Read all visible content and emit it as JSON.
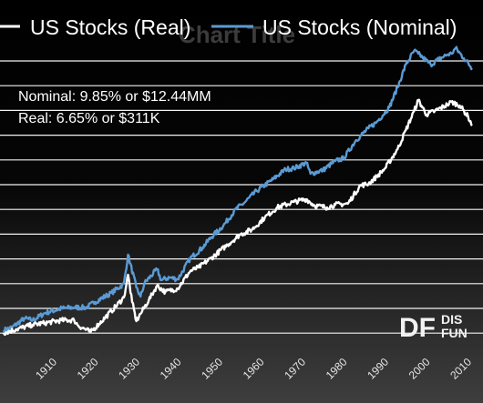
{
  "chart_data": {
    "type": "line",
    "title": "Chart Title",
    "xlabel": "",
    "ylabel": "",
    "y_scale": "log",
    "grid": "horizontal",
    "legend_position": "top",
    "x_range": [
      1900,
      2013
    ],
    "x_ticks": [
      "1910",
      "1920",
      "1930",
      "1940",
      "1950",
      "1960",
      "1970",
      "1980",
      "1990",
      "2000",
      "2010"
    ],
    "annotations": [
      "Nominal: 9.85% or $12.44MM",
      "Real: 6.65% or $311K"
    ],
    "series": [
      {
        "name": "US Stocks (Nominal)",
        "color": "#5b9bd5",
        "points": [
          [
            1900,
            0.5
          ],
          [
            1902,
            0.8
          ],
          [
            1905,
            1.8
          ],
          [
            1907,
            1.6
          ],
          [
            1910,
            2.4
          ],
          [
            1914,
            2.9
          ],
          [
            1917,
            3.0
          ],
          [
            1920,
            3.0
          ],
          [
            1922,
            3.6
          ],
          [
            1926,
            4.6
          ],
          [
            1929,
            5.6
          ],
          [
            1930,
            8.8
          ],
          [
            1932,
            5.2
          ],
          [
            1933,
            4.2
          ],
          [
            1934,
            5.7
          ],
          [
            1937,
            7.2
          ],
          [
            1938,
            6.0
          ],
          [
            1940,
            6.3
          ],
          [
            1942,
            6.1
          ],
          [
            1945,
            8.4
          ],
          [
            1948,
            9.6
          ],
          [
            1950,
            10.7
          ],
          [
            1953,
            12.0
          ],
          [
            1956,
            13.8
          ],
          [
            1958,
            14.5
          ],
          [
            1961,
            15.8
          ],
          [
            1965,
            17.1
          ],
          [
            1968,
            18.2
          ],
          [
            1970,
            18.3
          ],
          [
            1973,
            18.9
          ],
          [
            1974,
            17.7
          ],
          [
            1977,
            18.1
          ],
          [
            1980,
            19.1
          ],
          [
            1982,
            19.4
          ],
          [
            1985,
            21.4
          ],
          [
            1988,
            22.7
          ],
          [
            1990,
            23.4
          ],
          [
            1993,
            25.0
          ],
          [
            1995,
            27.2
          ],
          [
            1997,
            29.7
          ],
          [
            1999,
            31.2
          ],
          [
            2000,
            30.9
          ],
          [
            2001,
            30.5
          ],
          [
            2003,
            29.7
          ],
          [
            2005,
            30.3
          ],
          [
            2007,
            30.8
          ],
          [
            2008,
            30.9
          ],
          [
            2009,
            31.5
          ],
          [
            2011,
            30.4
          ],
          [
            2013,
            29.3
          ]
        ]
      },
      {
        "name": "US Stocks (Real)",
        "color": "#ffffff",
        "points": [
          [
            1900,
            0.2
          ],
          [
            1903,
            0.6
          ],
          [
            1907,
            1.1
          ],
          [
            1910,
            1.3
          ],
          [
            1914,
            1.6
          ],
          [
            1917,
            1.6
          ],
          [
            1918,
            1.0
          ],
          [
            1921,
            0.3
          ],
          [
            1923,
            1.2
          ],
          [
            1926,
            2.6
          ],
          [
            1929,
            4.1
          ],
          [
            1930,
            6.6
          ],
          [
            1931,
            3.6
          ],
          [
            1932,
            1.5
          ],
          [
            1933,
            2.3
          ],
          [
            1935,
            3.8
          ],
          [
            1937,
            5.4
          ],
          [
            1939,
            4.7
          ],
          [
            1942,
            5.1
          ],
          [
            1945,
            7.0
          ],
          [
            1947,
            7.4
          ],
          [
            1950,
            8.4
          ],
          [
            1954,
            9.9
          ],
          [
            1957,
            11.0
          ],
          [
            1960,
            11.6
          ],
          [
            1963,
            12.9
          ],
          [
            1966,
            14.0
          ],
          [
            1970,
            14.6
          ],
          [
            1973,
            14.9
          ],
          [
            1975,
            14.2
          ],
          [
            1978,
            14.0
          ],
          [
            1980,
            14.3
          ],
          [
            1983,
            14.4
          ],
          [
            1986,
            16.4
          ],
          [
            1988,
            16.6
          ],
          [
            1990,
            17.4
          ],
          [
            1992,
            18.3
          ],
          [
            1995,
            20.4
          ],
          [
            1997,
            22.5
          ],
          [
            1999,
            24.6
          ],
          [
            2000,
            25.8
          ],
          [
            2002,
            24.2
          ],
          [
            2004,
            24.6
          ],
          [
            2007,
            25.3
          ],
          [
            2008,
            25.6
          ],
          [
            2010,
            25.2
          ],
          [
            2012,
            24.0
          ],
          [
            2013,
            23.0
          ]
        ]
      }
    ]
  },
  "watermark": {
    "letters": "DF",
    "line1": "DIS",
    "line2": "FUN"
  }
}
